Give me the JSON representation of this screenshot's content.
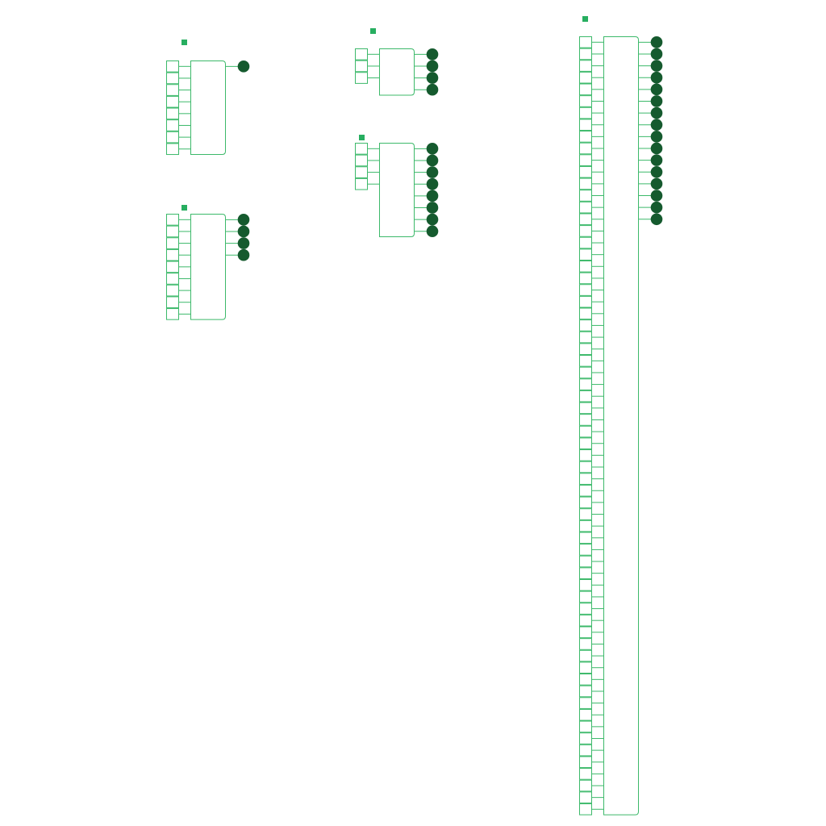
{
  "colors": {
    "wire": "#3cb96a",
    "marker": "#27ae60",
    "output_node": "#155a2e",
    "background": "#ffffff"
  },
  "blocks": [
    {
      "id": "block-1",
      "inputs": 8,
      "outputs": 1
    },
    {
      "id": "block-2",
      "inputs": 9,
      "outputs": 4
    },
    {
      "id": "block-3",
      "inputs": 3,
      "outputs": 4
    },
    {
      "id": "block-4",
      "inputs": 4,
      "outputs": 8
    },
    {
      "id": "block-5",
      "inputs": 66,
      "outputs": 16
    }
  ]
}
